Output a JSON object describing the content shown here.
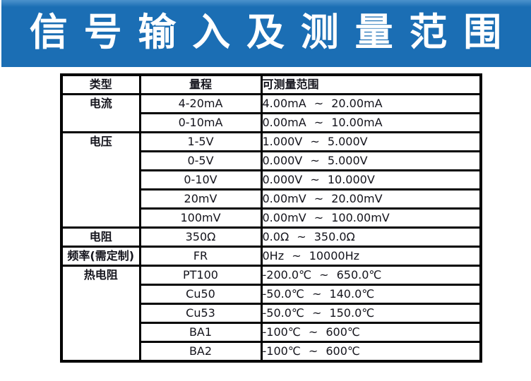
{
  "banner": {
    "title": "信 号 输 入 及 测 量 范 围"
  },
  "colors": {
    "banner_background": "#1b6eb4",
    "banner_text": "#ffffff",
    "table_border": "#000000",
    "table_text": "#14141c",
    "page_background": "#ffffff"
  },
  "table": {
    "headers": [
      "类型",
      "量程",
      "可测量范围"
    ],
    "groups": [
      {
        "label": "电流",
        "rows": [
          {
            "range": "4-20mA",
            "measurable": "4.00mA ~ 20.00mA"
          },
          {
            "range": "0-10mA",
            "measurable": "0.00mA ~ 10.00mA"
          }
        ]
      },
      {
        "label": "电压",
        "rows": [
          {
            "range": "1-5V",
            "measurable": "1.000V ~ 5.000V"
          },
          {
            "range": "0-5V",
            "measurable": "0.000V ~ 5.000V"
          },
          {
            "range": "0-10V",
            "measurable": "0.000V ~ 10.000V"
          },
          {
            "range": "20mV",
            "measurable": "0.00mV ~ 20.00mV"
          },
          {
            "range": "100mV",
            "measurable": "0.00mV ~ 100.00mV"
          }
        ]
      },
      {
        "label": "电阻",
        "rows": [
          {
            "range": "350Ω",
            "measurable": "0.0Ω ~ 350.0Ω"
          }
        ]
      },
      {
        "label": "频率(需定制)",
        "rows": [
          {
            "range": "FR",
            "measurable": "0Hz ~ 10000Hz"
          }
        ]
      },
      {
        "label": "热电阻",
        "rows": [
          {
            "range": "PT100",
            "measurable": "-200.0℃ ~ 650.0℃"
          },
          {
            "range": "Cu50",
            "measurable": "-50.0℃ ~ 140.0℃"
          },
          {
            "range": "Cu53",
            "measurable": "-50.0℃ ~ 150.0℃"
          },
          {
            "range": "BA1",
            "measurable": "-100℃ ~ 600℃"
          },
          {
            "range": "BA2",
            "measurable": "-100℃ ~ 600℃"
          }
        ]
      }
    ]
  }
}
